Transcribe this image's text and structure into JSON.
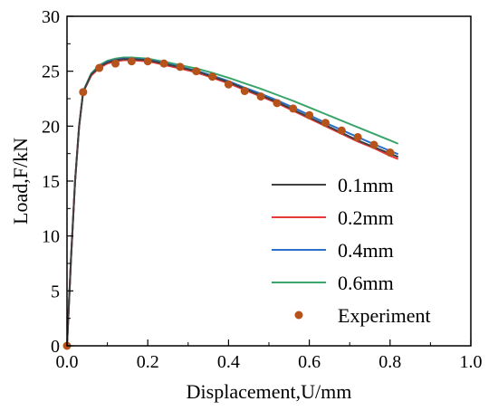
{
  "chart_data": {
    "type": "line",
    "xlabel": "Displacement,U/mm",
    "ylabel": "Load,F/kN",
    "xlim": [
      0.0,
      1.0
    ],
    "ylim": [
      0,
      30
    ],
    "x_ticks": [
      0.0,
      0.2,
      0.4,
      0.6,
      0.8,
      1.0
    ],
    "x_tick_labels": [
      "0.0",
      "0.2",
      "0.4",
      "0.6",
      "0.8",
      "1.0"
    ],
    "y_ticks": [
      0,
      5,
      10,
      15,
      20,
      25,
      30
    ],
    "y_tick_labels": [
      "0",
      "5",
      "10",
      "15",
      "20",
      "25",
      "30"
    ],
    "grid": false,
    "legend_position": "bottom-right",
    "series": [
      {
        "name": "0.1mm",
        "style": "line",
        "color": "#404040",
        "x": [
          0,
          0.01,
          0.02,
          0.03,
          0.04,
          0.06,
          0.08,
          0.1,
          0.12,
          0.14,
          0.16,
          0.18,
          0.2,
          0.22,
          0.25,
          0.28,
          0.32,
          0.36,
          0.4,
          0.44,
          0.48,
          0.52,
          0.56,
          0.6,
          0.64,
          0.68,
          0.72,
          0.76,
          0.8,
          0.82
        ],
        "y": [
          0,
          8,
          15,
          20,
          23.1,
          24.7,
          25.4,
          25.8,
          26.0,
          26.1,
          26.1,
          26.05,
          26.0,
          25.85,
          25.6,
          25.35,
          25.0,
          24.5,
          24.0,
          23.4,
          22.8,
          22.2,
          21.5,
          20.8,
          20.1,
          19.4,
          18.7,
          18.1,
          17.5,
          17.2
        ]
      },
      {
        "name": "0.2mm",
        "style": "line",
        "color": "#e8393a",
        "x": [
          0,
          0.01,
          0.02,
          0.03,
          0.04,
          0.06,
          0.08,
          0.1,
          0.12,
          0.14,
          0.16,
          0.18,
          0.2,
          0.22,
          0.25,
          0.28,
          0.32,
          0.36,
          0.4,
          0.44,
          0.48,
          0.52,
          0.56,
          0.6,
          0.64,
          0.68,
          0.72,
          0.76,
          0.8,
          0.82
        ],
        "y": [
          0,
          8,
          15,
          20,
          23.1,
          24.6,
          25.3,
          25.7,
          25.9,
          26.0,
          26.0,
          25.95,
          25.9,
          25.75,
          25.5,
          25.25,
          24.9,
          24.4,
          23.9,
          23.3,
          22.7,
          22.1,
          21.4,
          20.7,
          20.0,
          19.3,
          18.6,
          18.0,
          17.3,
          17.0
        ]
      },
      {
        "name": "0.4mm",
        "style": "line",
        "color": "#2a6fc9",
        "x": [
          0,
          0.01,
          0.02,
          0.03,
          0.04,
          0.06,
          0.08,
          0.1,
          0.12,
          0.14,
          0.16,
          0.18,
          0.2,
          0.22,
          0.25,
          0.28,
          0.32,
          0.36,
          0.4,
          0.44,
          0.48,
          0.52,
          0.56,
          0.6,
          0.64,
          0.68,
          0.72,
          0.76,
          0.8,
          0.82
        ],
        "y": [
          0,
          8,
          15,
          20,
          23.1,
          24.7,
          25.45,
          25.85,
          26.05,
          26.15,
          26.15,
          26.1,
          26.05,
          25.9,
          25.65,
          25.4,
          25.05,
          24.6,
          24.1,
          23.5,
          22.95,
          22.35,
          21.7,
          21.0,
          20.3,
          19.65,
          19.0,
          18.35,
          17.75,
          17.45
        ]
      },
      {
        "name": "0.6mm",
        "style": "line",
        "color": "#3aa56b",
        "x": [
          0,
          0.01,
          0.02,
          0.03,
          0.04,
          0.06,
          0.08,
          0.1,
          0.12,
          0.14,
          0.16,
          0.18,
          0.2,
          0.22,
          0.25,
          0.28,
          0.32,
          0.36,
          0.4,
          0.44,
          0.48,
          0.52,
          0.56,
          0.6,
          0.64,
          0.68,
          0.72,
          0.76,
          0.8,
          0.82
        ],
        "y": [
          0,
          8,
          15,
          20,
          23.2,
          24.8,
          25.55,
          25.95,
          26.15,
          26.25,
          26.25,
          26.2,
          26.15,
          26.0,
          25.8,
          25.55,
          25.25,
          24.85,
          24.4,
          23.9,
          23.4,
          22.85,
          22.3,
          21.7,
          21.1,
          20.5,
          19.9,
          19.3,
          18.7,
          18.4
        ]
      },
      {
        "name": "Experiment",
        "style": "scatter",
        "color": "#b5531a",
        "x": [
          0.0,
          0.04,
          0.08,
          0.12,
          0.16,
          0.2,
          0.24,
          0.28,
          0.32,
          0.36,
          0.4,
          0.44,
          0.48,
          0.52,
          0.56,
          0.6,
          0.64,
          0.68,
          0.72,
          0.76,
          0.8
        ],
        "y": [
          0,
          23.1,
          25.3,
          25.7,
          25.9,
          25.9,
          25.7,
          25.4,
          25.0,
          24.5,
          23.8,
          23.2,
          22.7,
          22.1,
          21.6,
          21.0,
          20.3,
          19.6,
          19.0,
          18.3,
          17.6
        ]
      }
    ]
  }
}
